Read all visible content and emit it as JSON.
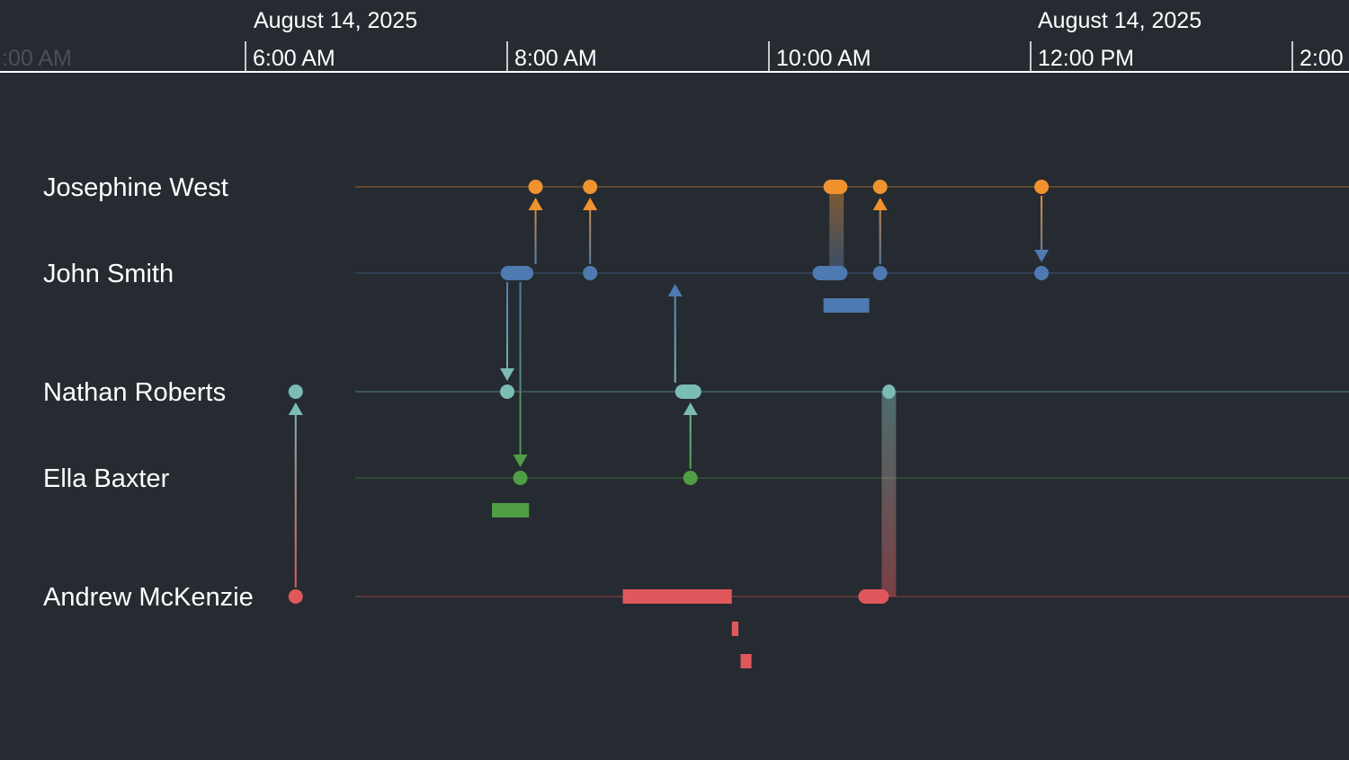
{
  "colors": {
    "background": "#262b31",
    "axis": "#ffffff",
    "josephine": "#f0922e",
    "john": "#4d7ab0",
    "nathan": "#7bbcb4",
    "ella": "#4f9e44",
    "andrew": "#e0575c"
  },
  "axis": {
    "date_labels": [
      "August 14, 2025",
      "August 14, 2025"
    ],
    "time_labels": [
      ":00 AM",
      "6:00 AM",
      "8:00 AM",
      "10:00 AM",
      "12:00 PM",
      "2:00"
    ]
  },
  "lanes": [
    {
      "id": "josephine",
      "label": "Josephine West"
    },
    {
      "id": "john",
      "label": "John Smith"
    },
    {
      "id": "nathan",
      "label": "Nathan Roberts"
    },
    {
      "id": "ella",
      "label": "Ella Baxter"
    },
    {
      "id": "andrew",
      "label": "Andrew McKenzie"
    }
  ],
  "events": {
    "point_events": [
      {
        "lane": "nathan",
        "time": "6:23 AM"
      },
      {
        "lane": "andrew",
        "time": "6:23 AM"
      },
      {
        "lane": "nathan",
        "time": "8:00 AM"
      },
      {
        "lane": "ella",
        "time": "8:06 AM"
      },
      {
        "lane": "josephine",
        "time": "8:13 AM"
      },
      {
        "lane": "josephine",
        "time": "8:38 AM"
      },
      {
        "lane": "john",
        "time": "8:38 AM"
      },
      {
        "lane": "ella",
        "time": "9:24 AM"
      },
      {
        "lane": "josephine",
        "time": "10:51 AM"
      },
      {
        "lane": "john",
        "time": "10:51 AM"
      },
      {
        "lane": "josephine",
        "time": "12:05 PM"
      },
      {
        "lane": "john",
        "time": "12:05 PM"
      }
    ],
    "span_events": [
      {
        "lane": "john",
        "start": "7:57 AM",
        "end": "8:12 AM"
      },
      {
        "lane": "josephine",
        "start": "10:25 AM",
        "end": "10:36 AM"
      },
      {
        "lane": "john",
        "start": "10:20 AM",
        "end": "10:36 AM"
      },
      {
        "lane": "nathan",
        "start": "9:17 AM",
        "end": "9:29 AM"
      },
      {
        "lane": "nathan",
        "start": "10:52 AM",
        "end": "10:58 AM"
      },
      {
        "lane": "andrew",
        "start": "10:41 AM",
        "end": "10:55 AM"
      }
    ],
    "links": [
      {
        "from": "andrew",
        "to": "nathan",
        "time": "6:23 AM",
        "arrow": true
      },
      {
        "from": "john",
        "to": "nathan",
        "time": "8:00 AM",
        "arrow": true
      },
      {
        "from": "john",
        "to": "ella",
        "time": "8:06 AM",
        "arrow": true
      },
      {
        "from": "john",
        "to": "josephine",
        "time": "8:13 AM",
        "arrow": true
      },
      {
        "from": "john",
        "to": "josephine",
        "time": "8:38 AM",
        "arrow": true
      },
      {
        "from": "ella",
        "to": "nathan",
        "time": "9:24 AM",
        "arrow": true
      },
      {
        "from": "nathan",
        "to": "john",
        "time": "9:17 AM",
        "arrow": true
      },
      {
        "from": "john",
        "to": "josephine",
        "time": "10:51 AM",
        "arrow": true
      },
      {
        "from": "josephine",
        "to": "john",
        "time": "12:05 PM",
        "arrow": true
      },
      {
        "from": "john",
        "to": "josephine",
        "time": "10:31 AM",
        "arrow": false
      },
      {
        "from": "nathan",
        "to": "andrew",
        "time": "10:55 AM",
        "arrow": false
      }
    ],
    "activity_bars": [
      {
        "lane": "john",
        "start": "10:25 AM",
        "end": "10:46 AM"
      },
      {
        "lane": "ella",
        "start": "7:53 AM",
        "end": "8:10 AM"
      },
      {
        "lane": "andrew",
        "start": "8:53 AM",
        "end": "9:43 AM"
      },
      {
        "lane": "andrew",
        "start": "9:43 AM",
        "end": "9:46 AM"
      },
      {
        "lane": "andrew",
        "start": "9:47 AM",
        "end": "9:52 AM"
      }
    ]
  }
}
